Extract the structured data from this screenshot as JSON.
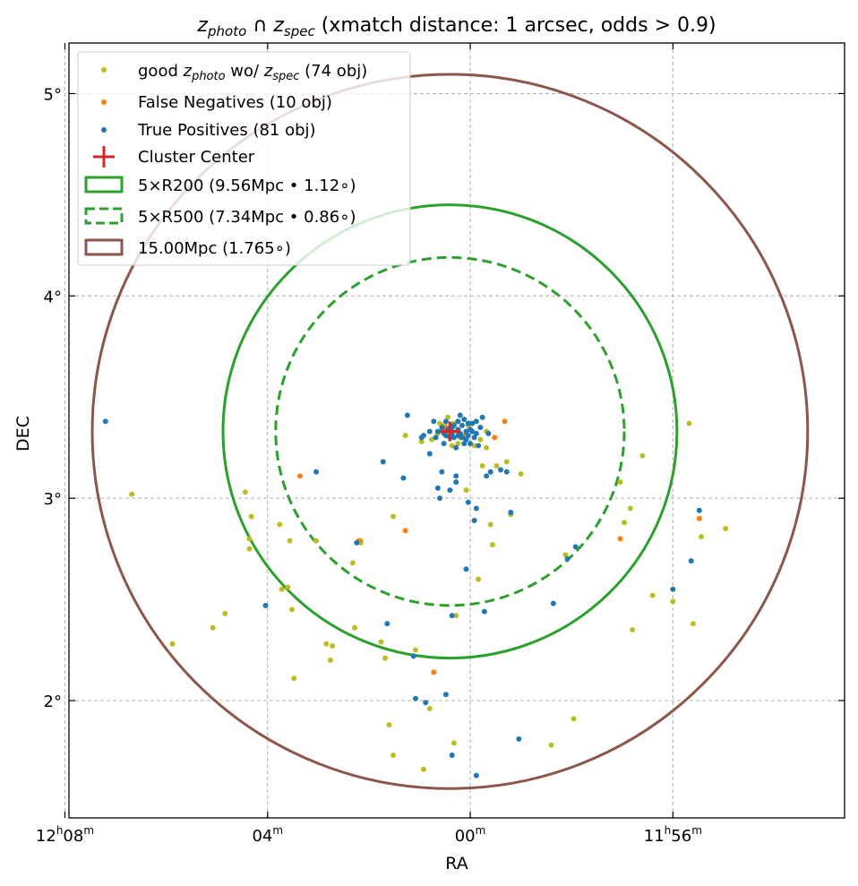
{
  "chart_data": {
    "type": "scatter",
    "title": {
      "z_main": "z",
      "photo_sub": "photo",
      "cap": " ∩ ",
      "spec_main": "z",
      "spec_sub": "spec",
      "rest": " (xmatch distance: 1 arcsec, odds > 0.9)"
    },
    "xlabel": "RA",
    "ylabel": "DEC",
    "xlim": [
      181.98,
      178.153
    ],
    "ylim": [
      1.42,
      5.25
    ],
    "grid": true,
    "x_ticks": [
      {
        "value": 182.0,
        "h": "12",
        "hsup": "h",
        "m": "08",
        "msup": "m"
      },
      {
        "value": 181.0,
        "h": "",
        "hsup": "",
        "m": "04",
        "msup": "m"
      },
      {
        "value": 180.0,
        "h": "",
        "hsup": "",
        "m": "00",
        "msup": "m"
      },
      {
        "value": 179.0,
        "h": "11",
        "hsup": "h",
        "m": "56",
        "msup": "m"
      }
    ],
    "y_ticks": [
      {
        "value": 2,
        "label": "2°"
      },
      {
        "value": 3,
        "label": "3°"
      },
      {
        "value": 4,
        "label": "4°"
      },
      {
        "value": 5,
        "label": "5°"
      }
    ],
    "legend_position": "upper-left",
    "legend": {
      "good": {
        "pre": "good ",
        "z": "z",
        "sub1": "photo",
        "mid": " wo/ ",
        "z2": "z",
        "sub2": "spec",
        "post": " (74 obj)"
      },
      "fn": "False Negatives (10 obj)",
      "tp": "True Positives (81 obj)",
      "center": "Cluster Center",
      "r200": "5×R200 (9.56Mpc • 1.12∘)",
      "r500": "5×R500 (7.34Mpc • 0.86∘)",
      "mpc": "15.00Mpc (1.765∘)"
    },
    "colors": {
      "good": "#bcbd22",
      "fn": "#ff7f0e",
      "tp": "#1f77b4",
      "center": "#d62728",
      "r200": "#2ca02c",
      "r500": "#2ca02c",
      "mpc": "#8c564b"
    },
    "center": {
      "x": 180.1,
      "y": 3.33
    },
    "circles": [
      {
        "key": "mpc",
        "radius_deg": 1.765,
        "dashed": false
      },
      {
        "key": "r200",
        "radius_deg": 1.12,
        "dashed": false
      },
      {
        "key": "r500",
        "radius_deg": 0.86,
        "dashed": true
      }
    ],
    "series": [
      {
        "key": "good",
        "name": "good zphoto wo/ zspec (74 obj)",
        "points": [
          [
            181.67,
            3.02
          ],
          [
            181.47,
            2.28
          ],
          [
            181.27,
            2.36
          ],
          [
            181.21,
            2.43
          ],
          [
            181.11,
            3.03
          ],
          [
            181.08,
            2.91
          ],
          [
            181.09,
            2.8
          ],
          [
            181.09,
            2.75
          ],
          [
            180.94,
            2.87
          ],
          [
            180.89,
            2.79
          ],
          [
            180.93,
            2.55
          ],
          [
            180.9,
            2.56
          ],
          [
            180.88,
            2.45
          ],
          [
            180.87,
            2.11
          ],
          [
            180.76,
            2.79
          ],
          [
            180.71,
            2.28
          ],
          [
            180.69,
            2.2
          ],
          [
            180.68,
            2.27
          ],
          [
            180.58,
            2.68
          ],
          [
            180.57,
            2.36
          ],
          [
            180.54,
            2.79
          ],
          [
            180.54,
            2.78
          ],
          [
            180.44,
            2.29
          ],
          [
            180.42,
            2.21
          ],
          [
            180.38,
            2.91
          ],
          [
            180.4,
            1.88
          ],
          [
            180.38,
            1.73
          ],
          [
            180.32,
            3.31
          ],
          [
            180.27,
            2.25
          ],
          [
            180.23,
            1.66
          ],
          [
            180.2,
            1.96
          ],
          [
            180.19,
            3.29
          ],
          [
            180.16,
            3.32
          ],
          [
            180.13,
            3.36
          ],
          [
            180.11,
            3.4
          ],
          [
            180.09,
            3.26
          ],
          [
            180.07,
            2.42
          ],
          [
            180.08,
            1.79
          ],
          [
            180.03,
            3.31
          ],
          [
            180.01,
            3.36
          ],
          [
            180.02,
            3.04
          ],
          [
            179.98,
            3.26
          ],
          [
            179.96,
            2.6
          ],
          [
            179.9,
            2.87
          ],
          [
            179.89,
            2.77
          ],
          [
            179.92,
            3.25
          ],
          [
            179.94,
            3.16
          ],
          [
            179.87,
            3.16
          ],
          [
            179.82,
            3.18
          ],
          [
            179.8,
            2.92
          ],
          [
            179.75,
            3.12
          ],
          [
            179.6,
            1.78
          ],
          [
            179.53,
            2.72
          ],
          [
            179.49,
            1.91
          ],
          [
            179.26,
            3.08
          ],
          [
            179.24,
            2.88
          ],
          [
            179.21,
            2.95
          ],
          [
            179.2,
            2.35
          ],
          [
            179.15,
            3.21
          ],
          [
            179.1,
            2.52
          ],
          [
            179.0,
            2.49
          ],
          [
            178.92,
            3.37
          ],
          [
            178.9,
            2.38
          ],
          [
            178.86,
            2.81
          ],
          [
            178.74,
            2.85
          ],
          [
            180.13,
            3.35
          ],
          [
            180.05,
            3.3
          ],
          [
            180.24,
            3.28
          ],
          [
            180.08,
            3.37
          ],
          [
            179.95,
            3.29
          ],
          [
            180.15,
            3.37
          ],
          [
            180.06,
            3.27
          ],
          [
            179.92,
            3.33
          ],
          [
            180.1,
            3.31
          ]
        ]
      },
      {
        "key": "fn",
        "name": "False Negatives (10 obj)",
        "points": [
          [
            180.84,
            3.11
          ],
          [
            180.55,
            2.79
          ],
          [
            180.32,
            2.84
          ],
          [
            180.18,
            2.14
          ],
          [
            179.83,
            3.38
          ],
          [
            179.88,
            3.3
          ],
          [
            179.26,
            2.8
          ],
          [
            178.87,
            2.9
          ],
          [
            180.12,
            3.35
          ],
          [
            180.04,
            3.31
          ]
        ]
      },
      {
        "key": "tp",
        "name": "True Positives (81 obj)",
        "points": [
          [
            181.8,
            3.38
          ],
          [
            181.01,
            2.47
          ],
          [
            180.76,
            3.13
          ],
          [
            180.56,
            2.78
          ],
          [
            180.41,
            2.38
          ],
          [
            180.43,
            3.18
          ],
          [
            180.31,
            3.41
          ],
          [
            180.23,
            3.31
          ],
          [
            180.2,
            3.33
          ],
          [
            180.18,
            3.38
          ],
          [
            180.16,
            3.33
          ],
          [
            180.09,
            3.35
          ],
          [
            180.08,
            3.36
          ],
          [
            180.06,
            3.38
          ],
          [
            180.05,
            3.41
          ],
          [
            180.1,
            3.3
          ],
          [
            180.13,
            3.27
          ],
          [
            180.07,
            3.25
          ],
          [
            180.12,
            3.31
          ],
          [
            180.05,
            3.32
          ],
          [
            180.03,
            3.27
          ],
          [
            180.02,
            3.33
          ],
          [
            179.99,
            3.33
          ],
          [
            179.97,
            3.32
          ],
          [
            179.94,
            3.4
          ],
          [
            179.96,
            3.26
          ],
          [
            179.91,
            3.32
          ],
          [
            180.07,
            3.11
          ],
          [
            180.07,
            3.08
          ],
          [
            180.1,
            3.04
          ],
          [
            180.16,
            3.05
          ],
          [
            180.15,
            3.0
          ],
          [
            180.14,
            3.13
          ],
          [
            180.01,
            2.98
          ],
          [
            179.98,
            2.89
          ],
          [
            179.97,
            2.95
          ],
          [
            179.92,
            3.11
          ],
          [
            179.9,
            3.13
          ],
          [
            179.85,
            3.14
          ],
          [
            179.82,
            3.13
          ],
          [
            179.8,
            2.93
          ],
          [
            179.93,
            2.44
          ],
          [
            180.02,
            2.65
          ],
          [
            180.09,
            2.42
          ],
          [
            180.33,
            3.1
          ],
          [
            180.2,
            3.22
          ],
          [
            180.24,
            3.3
          ],
          [
            180.28,
            2.22
          ],
          [
            180.27,
            2.01
          ],
          [
            180.22,
            1.99
          ],
          [
            180.12,
            2.03
          ],
          [
            180.09,
            1.73
          ],
          [
            179.97,
            1.63
          ],
          [
            179.76,
            1.81
          ],
          [
            179.59,
            2.48
          ],
          [
            179.52,
            2.7
          ],
          [
            179.48,
            2.76
          ],
          [
            179.0,
            2.55
          ],
          [
            178.91,
            2.69
          ],
          [
            178.87,
            2.94
          ],
          [
            180.01,
            3.37
          ],
          [
            180.0,
            3.34
          ],
          [
            179.98,
            3.3
          ],
          [
            180.02,
            3.29
          ],
          [
            180.06,
            3.34
          ],
          [
            180.04,
            3.36
          ],
          [
            180.08,
            3.3
          ],
          [
            180.11,
            3.34
          ],
          [
            180.14,
            3.35
          ],
          [
            179.99,
            3.37
          ],
          [
            180.03,
            3.39
          ],
          [
            180.06,
            3.31
          ],
          [
            180.01,
            3.31
          ],
          [
            180.12,
            3.38
          ],
          [
            180.09,
            3.32
          ],
          [
            179.95,
            3.35
          ],
          [
            180.04,
            3.3
          ],
          [
            180.17,
            3.3
          ],
          [
            180.0,
            3.27
          ],
          [
            179.97,
            3.38
          ],
          [
            180.13,
            3.32
          ]
        ]
      }
    ]
  }
}
